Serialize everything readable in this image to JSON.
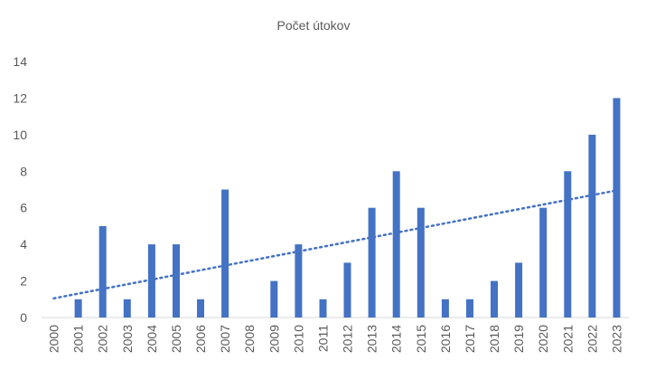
{
  "chart_data": {
    "type": "bar",
    "title": "Počet útokov",
    "xlabel": "",
    "ylabel": "",
    "categories": [
      "2000",
      "2001",
      "2002",
      "2003",
      "2004",
      "2005",
      "2006",
      "2007",
      "2008",
      "2009",
      "2010",
      "2011",
      "2012",
      "2013",
      "2014",
      "2015",
      "2016",
      "2017",
      "2018",
      "2019",
      "2020",
      "2021",
      "2022",
      "2023"
    ],
    "values": [
      0,
      1,
      5,
      1,
      4,
      4,
      1,
      7,
      0,
      2,
      4,
      1,
      3,
      6,
      8,
      6,
      1,
      1,
      2,
      3,
      6,
      8,
      10,
      12
    ],
    "ylim": [
      0,
      14
    ],
    "yticks": [
      0,
      2,
      4,
      6,
      8,
      10,
      12,
      14
    ],
    "grid": false,
    "legend": "none",
    "trendline": {
      "type": "linear",
      "style": "dotted",
      "start": 1.05,
      "end": 6.95
    },
    "colors": {
      "bar": "#4472C4",
      "trend": "#4472C4",
      "text": "#595959"
    }
  }
}
